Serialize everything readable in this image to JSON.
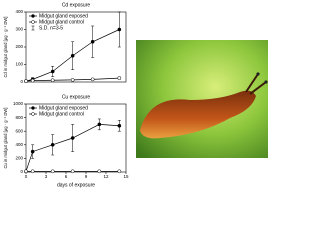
{
  "chart_data": [
    {
      "type": "line",
      "title": "Cd exposure",
      "ylabel": "Cd in midgut gland [µg · g⁻¹ DW]",
      "x": [
        0,
        1,
        4,
        7,
        10,
        14
      ],
      "xlim": [
        0,
        15
      ],
      "ylim": [
        0,
        400
      ],
      "yticks": [
        0,
        100,
        200,
        300,
        400
      ],
      "sd_label": "S.D. n=3-5",
      "series": [
        {
          "name": "Midgut gland exposed",
          "color": "#000000",
          "marker": "filled",
          "values": [
            5,
            15,
            60,
            150,
            230,
            300
          ],
          "errors": [
            5,
            10,
            30,
            80,
            90,
            100
          ]
        },
        {
          "name": "Midgut gland control",
          "color": "#000000",
          "marker": "open",
          "values": [
            5,
            8,
            10,
            12,
            15,
            22
          ],
          "errors": [
            3,
            3,
            4,
            4,
            5,
            6
          ]
        }
      ]
    },
    {
      "type": "line",
      "title": "Cu exposure",
      "ylabel": "Cu in midgut gland [µg · g⁻¹ DW]",
      "xlabel": "days of exposure",
      "x": [
        0,
        1,
        4,
        7,
        11,
        14
      ],
      "xlim": [
        0,
        15
      ],
      "xticks": [
        0,
        3,
        6,
        9,
        12,
        15
      ],
      "ylim": [
        0,
        1000
      ],
      "yticks": [
        0,
        200,
        400,
        600,
        800,
        1000
      ],
      "series": [
        {
          "name": "Midgut gland exposed",
          "color": "#000000",
          "marker": "filled",
          "values": [
            10,
            300,
            400,
            500,
            700,
            680
          ],
          "errors": [
            10,
            100,
            150,
            200,
            80,
            80
          ]
        },
        {
          "name": "Midgut gland control",
          "color": "#000000",
          "marker": "open",
          "values": [
            10,
            10,
            10,
            10,
            10,
            10
          ],
          "errors": [
            5,
            5,
            5,
            5,
            5,
            5
          ]
        }
      ]
    }
  ]
}
